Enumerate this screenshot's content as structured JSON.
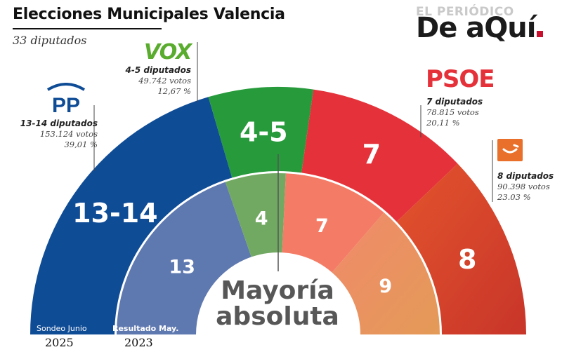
{
  "header": {
    "title": "Elecciones Municipales Valencia",
    "subtitle": "33 diputados"
  },
  "brand": {
    "top": "EL PERIÓDICO",
    "main": "De aQuí"
  },
  "parties": [
    {
      "logo": "PP",
      "seats_label": "13-14 diputados",
      "votes": "153.124 votos",
      "pct": "39,01 %",
      "color": "#0f4c96"
    },
    {
      "logo": "VOX",
      "seats_label": "4-5 diputados",
      "votes": "49.742 votos",
      "pct": "12,67 %",
      "color": "#279a3c"
    },
    {
      "logo": "PSOE",
      "seats_label": "7 diputados",
      "votes": "78.815 votos",
      "pct": "20,11 %",
      "color": "#e5323a"
    },
    {
      "logo": "Compromís",
      "seats_label": "8 diputados",
      "votes": "90.398 votos",
      "pct": "23.03 %",
      "color": "#e25a2c"
    }
  ],
  "center_label": {
    "line1": "Mayoría",
    "line2": "absoluta"
  },
  "rings": {
    "outer": {
      "caption_bold": "",
      "caption": "Sondeo Junio",
      "year": "2025"
    },
    "inner": {
      "caption_bold": "Resultado May.",
      "caption": "",
      "year": "2023"
    }
  },
  "chart_data": [
    {
      "type": "pie",
      "title": "",
      "categories": [
        "PP",
        "VOX",
        "PSOE",
        "Compromís"
      ],
      "values": [
        13.5,
        4.5,
        7,
        8
      ],
      "labels": [
        "13-14",
        "4-5",
        "7",
        "8"
      ],
      "colors": [
        "#0f4c96",
        "#279a3c",
        "#e5323a",
        "#d9472b"
      ],
      "total": 33,
      "majority": 17
    },
    {
      "type": "pie",
      "title": "",
      "categories": [
        "PP",
        "VOX",
        "PSOE",
        "Compromís"
      ],
      "values": [
        13,
        4,
        7,
        9
      ],
      "labels": [
        "13",
        "4",
        "7",
        "9"
      ],
      "colors": [
        "#5e78b0",
        "#72a962",
        "#f47c66",
        "#ea8c5a"
      ],
      "total": 33,
      "majority": 17
    }
  ]
}
